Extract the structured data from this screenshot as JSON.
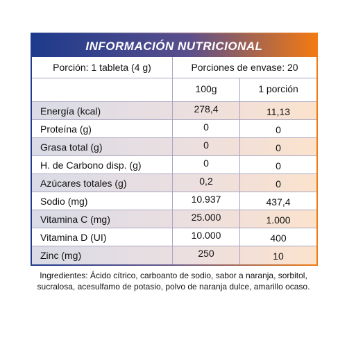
{
  "table": {
    "title": "INFORMACIÓN NUTRICIONAL",
    "serving_size": "Porción: 1 tableta (4 g)",
    "servings_per_container": "Porciones de envase: 20",
    "columns": [
      "100g",
      "1 porción"
    ],
    "rows": [
      [
        "Energía (kcal)",
        "278,4",
        "11,13"
      ],
      [
        "Proteína (g)",
        "0",
        "0"
      ],
      [
        "Grasa total (g)",
        "0",
        "0"
      ],
      [
        "H. de Carbono disp. (g)",
        "0",
        "0"
      ],
      [
        "Azúcares totales (g)",
        "0,2",
        "0"
      ],
      [
        "Sodio (mg)",
        "10.937",
        "437,4"
      ],
      [
        "Vitamina C (mg)",
        "25.000",
        "1.000"
      ],
      [
        "Vitamina D (UI)",
        "10.000",
        "400"
      ],
      [
        "Zinc (mg)",
        "250",
        "10"
      ]
    ]
  },
  "ingredients": "Ingredientes: Ácido cítrico, carboanto de sodio, sabor a naranja, sorbitol, sucralosa, acesulfamo de potasio, polvo de naranja dulce, amarillo ocaso."
}
